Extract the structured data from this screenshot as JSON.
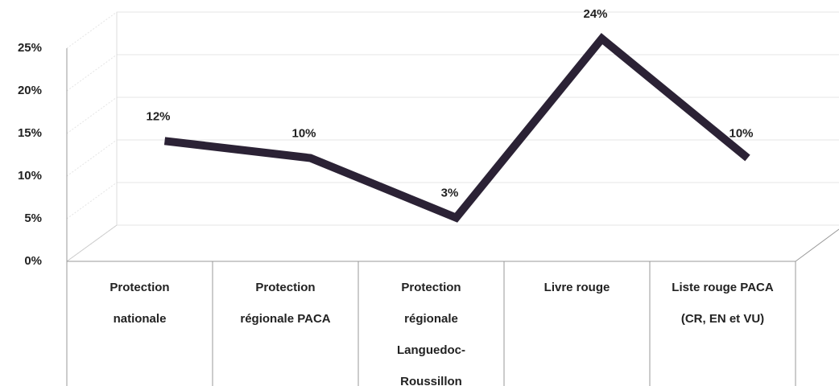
{
  "chart_data": {
    "type": "line",
    "categories": [
      "Protection nationale",
      "Protection régionale PACA",
      "Protection régionale Languedoc-Roussillon",
      "Livre rouge",
      "Liste rouge PACA (CR, EN et VU)"
    ],
    "values": [
      12,
      10,
      3,
      24,
      10
    ],
    "value_labels": [
      "12%",
      "10%",
      "3%",
      "24%",
      "10%"
    ],
    "color": "#2b2235",
    "ylim": [
      0,
      25
    ],
    "yticks": [
      {
        "value": 0,
        "label": "0%"
      },
      {
        "value": 5,
        "label": "5%"
      },
      {
        "value": 10,
        "label": "10%"
      },
      {
        "value": 15,
        "label": "15%"
      },
      {
        "value": 20,
        "label": "20%"
      },
      {
        "value": 25,
        "label": "25%"
      }
    ],
    "grid": true
  }
}
